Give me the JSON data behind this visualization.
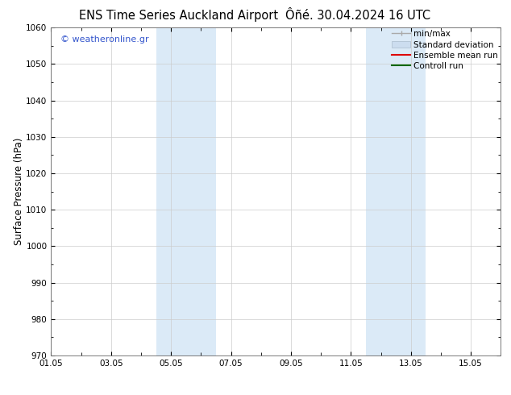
{
  "title_left": "ENS Time Series Auckland Airport",
  "title_right": "Ôñé. 30.04.2024 16 UTC",
  "ylabel": "Surface Pressure (hPa)",
  "ylim": [
    970,
    1060
  ],
  "yticks": [
    970,
    980,
    990,
    1000,
    1010,
    1020,
    1030,
    1040,
    1050,
    1060
  ],
  "xtick_labels": [
    "01.05",
    "03.05",
    "05.05",
    "07.05",
    "09.05",
    "11.05",
    "13.05",
    "15.05"
  ],
  "xtick_positions": [
    0,
    2,
    4,
    6,
    8,
    10,
    12,
    14
  ],
  "xlim": [
    0,
    15
  ],
  "shaded_regions": [
    {
      "x_start": 3.5,
      "x_end": 5.5,
      "color": "#dbeaf7"
    },
    {
      "x_start": 10.5,
      "x_end": 12.5,
      "color": "#dbeaf7"
    }
  ],
  "watermark_text": "© weatheronline.gr",
  "watermark_color": "#3355cc",
  "legend_entries": [
    {
      "label": "min/max",
      "color": "#aaaaaa"
    },
    {
      "label": "Standard deviation",
      "color": "#ccddef"
    },
    {
      "label": "Ensemble mean run",
      "color": "#dd0000"
    },
    {
      "label": "Controll run",
      "color": "#006600"
    }
  ],
  "background_color": "#ffffff",
  "grid_color": "#cccccc",
  "tick_label_fontsize": 7.5,
  "axis_label_fontsize": 8.5,
  "title_fontsize": 10.5,
  "watermark_fontsize": 8.0,
  "legend_fontsize": 7.5
}
